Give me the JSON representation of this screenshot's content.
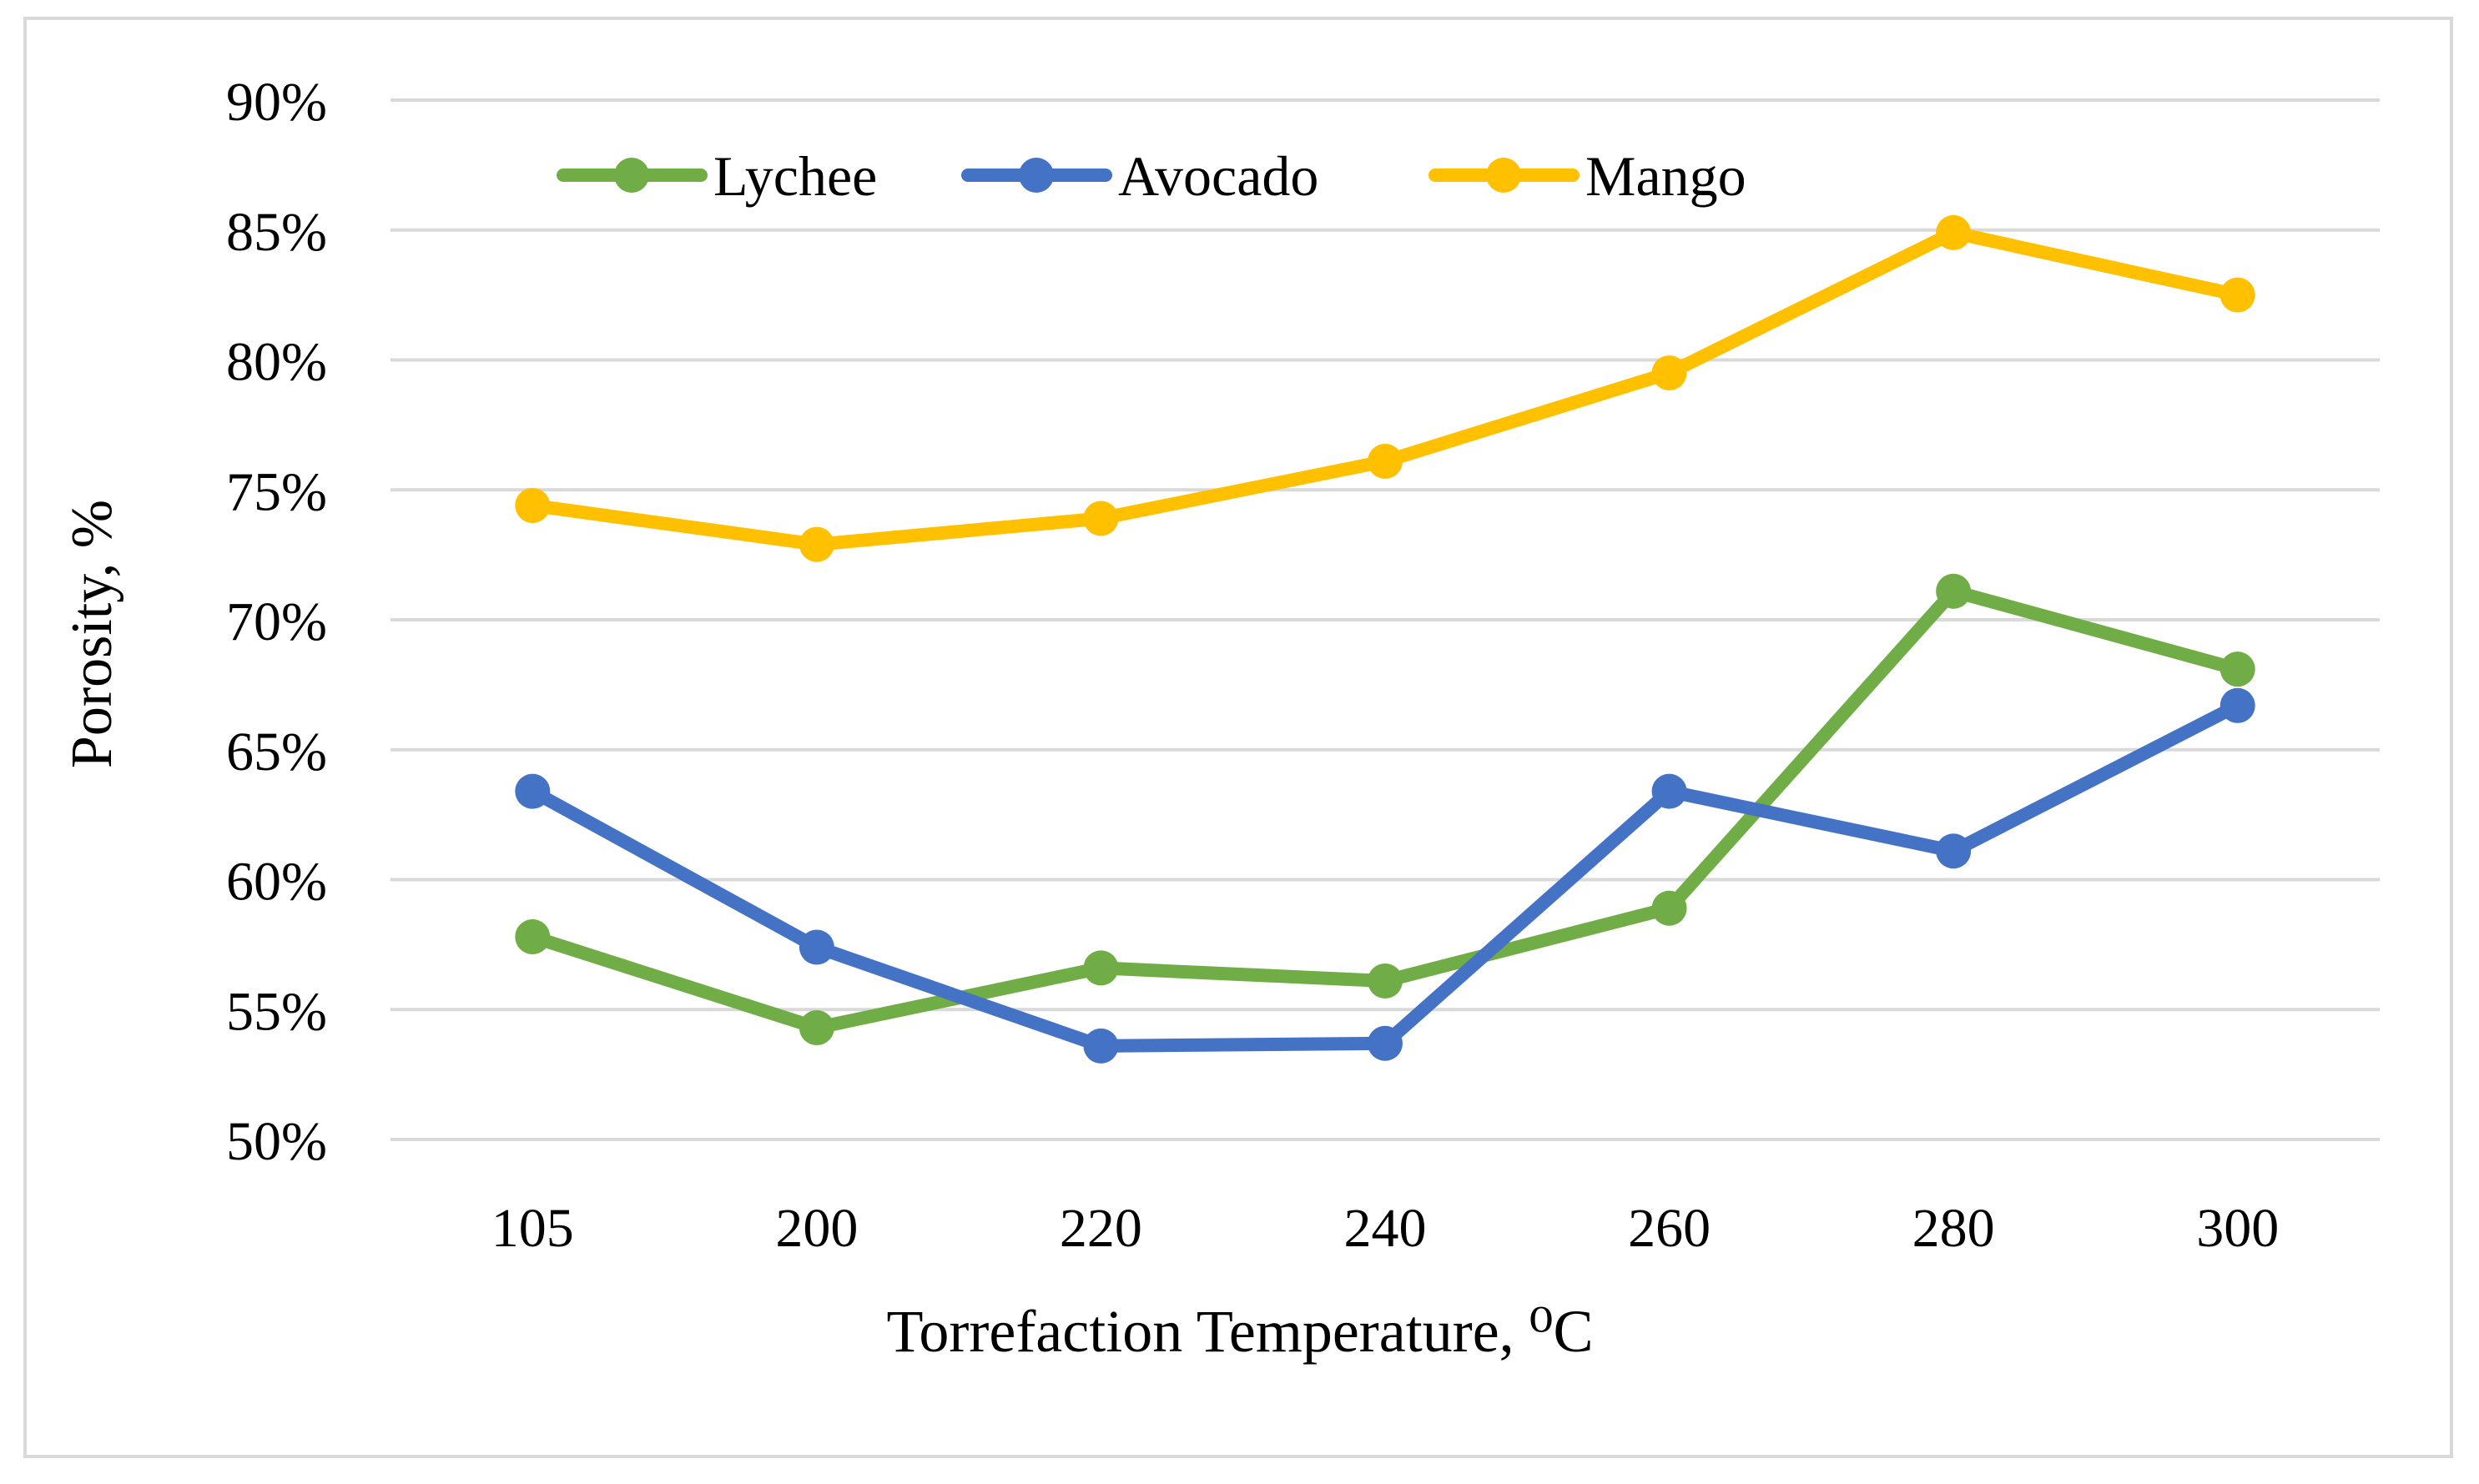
{
  "chart_data": {
    "type": "line",
    "title": "",
    "xlabel": "Torrefaction Temperature, ⁰C",
    "ylabel": "Porosity, %",
    "categories": [
      "105",
      "200",
      "220",
      "240",
      "260",
      "280",
      "300"
    ],
    "ylim": [
      0.5,
      0.9
    ],
    "yticks": [
      "50%",
      "55%",
      "60%",
      "65%",
      "70%",
      "75%",
      "80%",
      "85%",
      "90%"
    ],
    "grid": "horizontal",
    "legend_position": "top-left",
    "series": [
      {
        "name": "Lychee",
        "color": "#70ad47",
        "values": [
          0.578,
          0.543,
          0.566,
          0.561,
          0.589,
          0.711,
          0.681
        ]
      },
      {
        "name": "Avocado",
        "color": "#4472c4",
        "values": [
          0.634,
          0.574,
          0.536,
          0.537,
          0.634,
          0.611,
          0.667
        ]
      },
      {
        "name": "Mango",
        "color": "#ffc000",
        "values": [
          0.744,
          0.729,
          0.739,
          0.761,
          0.795,
          0.849,
          0.825
        ]
      }
    ]
  }
}
